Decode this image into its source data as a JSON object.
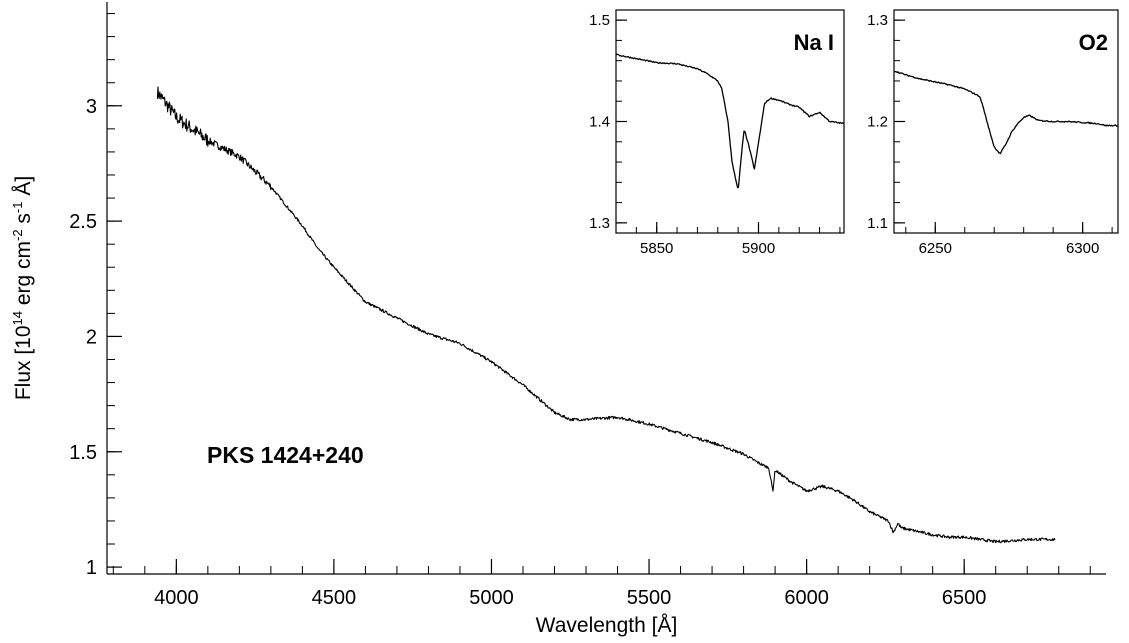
{
  "chart_data": [
    {
      "type": "line",
      "title": "",
      "annotation": "PKS 1424+240",
      "xlabel": "Wavelength [Å]",
      "ylabel_parts": [
        "Flux [10",
        "14",
        " erg cm",
        "-2",
        " s",
        "-1",
        " Å]"
      ],
      "xlim": [
        3780,
        6950
      ],
      "ylim": [
        0.97,
        3.45
      ],
      "xticks": [
        4000,
        4500,
        5000,
        5500,
        6000,
        6500
      ],
      "xtick_labels": [
        "4000",
        "4500",
        "5000",
        "5500",
        "6000",
        "6500"
      ],
      "yticks": [
        1,
        1.5,
        2,
        2.5,
        3
      ],
      "ytick_labels": [
        "1",
        "1.5",
        "2",
        "2.5",
        "3"
      ],
      "grid": false,
      "x": [
        3940,
        4000,
        4100,
        4200,
        4300,
        4400,
        4450,
        4500,
        4600,
        4700,
        4800,
        4900,
        5000,
        5100,
        5200,
        5250,
        5300,
        5400,
        5500,
        5600,
        5700,
        5800,
        5850,
        5880,
        5893,
        5900,
        5950,
        6000,
        6050,
        6100,
        6150,
        6200,
        6260,
        6275,
        6290,
        6300,
        6400,
        6450,
        6500,
        6600,
        6700,
        6790
      ],
      "y": [
        3.06,
        2.95,
        2.85,
        2.78,
        2.65,
        2.48,
        2.38,
        2.3,
        2.15,
        2.08,
        2.01,
        1.97,
        1.89,
        1.79,
        1.67,
        1.64,
        1.64,
        1.65,
        1.62,
        1.58,
        1.54,
        1.49,
        1.45,
        1.43,
        1.33,
        1.42,
        1.37,
        1.33,
        1.35,
        1.33,
        1.29,
        1.24,
        1.2,
        1.15,
        1.19,
        1.17,
        1.14,
        1.13,
        1.13,
        1.11,
        1.12,
        1.12
      ]
    },
    {
      "type": "line",
      "title": "",
      "annotation": "Na I",
      "xlim": [
        5830,
        5942
      ],
      "ylim": [
        1.29,
        1.51
      ],
      "xticks": [
        5850,
        5900
      ],
      "xtick_labels": [
        "5850",
        "5900"
      ],
      "yticks": [
        1.3,
        1.4,
        1.5
      ],
      "ytick_labels": [
        "1.3",
        "1.4",
        "1.5"
      ],
      "grid": false,
      "x": [
        5830,
        5840,
        5850,
        5860,
        5870,
        5875,
        5880,
        5882,
        5885,
        5887,
        5890,
        5892,
        5893,
        5895,
        5898,
        5901,
        5903,
        5906,
        5910,
        5915,
        5920,
        5925,
        5930,
        5935,
        5942
      ],
      "y": [
        1.466,
        1.462,
        1.458,
        1.457,
        1.452,
        1.447,
        1.44,
        1.432,
        1.4,
        1.36,
        1.332,
        1.375,
        1.392,
        1.378,
        1.353,
        1.392,
        1.418,
        1.423,
        1.421,
        1.417,
        1.414,
        1.405,
        1.409,
        1.4,
        1.398
      ]
    },
    {
      "type": "line",
      "title": "",
      "annotation": "O2",
      "xlim": [
        6236,
        6312
      ],
      "ylim": [
        1.09,
        1.31
      ],
      "xticks": [
        6250,
        6300
      ],
      "xtick_labels": [
        "6250",
        "6300"
      ],
      "yticks": [
        1.1,
        1.2,
        1.3
      ],
      "ytick_labels": [
        "1.1",
        "1.2",
        "1.3"
      ],
      "grid": false,
      "x": [
        6236,
        6240,
        6245,
        6250,
        6255,
        6260,
        6265,
        6266,
        6268,
        6270,
        6272,
        6274,
        6276,
        6278,
        6280,
        6282,
        6285,
        6290,
        6295,
        6300,
        6305,
        6308,
        6312
      ],
      "y": [
        1.25,
        1.246,
        1.242,
        1.239,
        1.236,
        1.232,
        1.225,
        1.217,
        1.195,
        1.175,
        1.168,
        1.178,
        1.19,
        1.198,
        1.204,
        1.206,
        1.201,
        1.2,
        1.2,
        1.199,
        1.198,
        1.196,
        1.196
      ]
    }
  ]
}
